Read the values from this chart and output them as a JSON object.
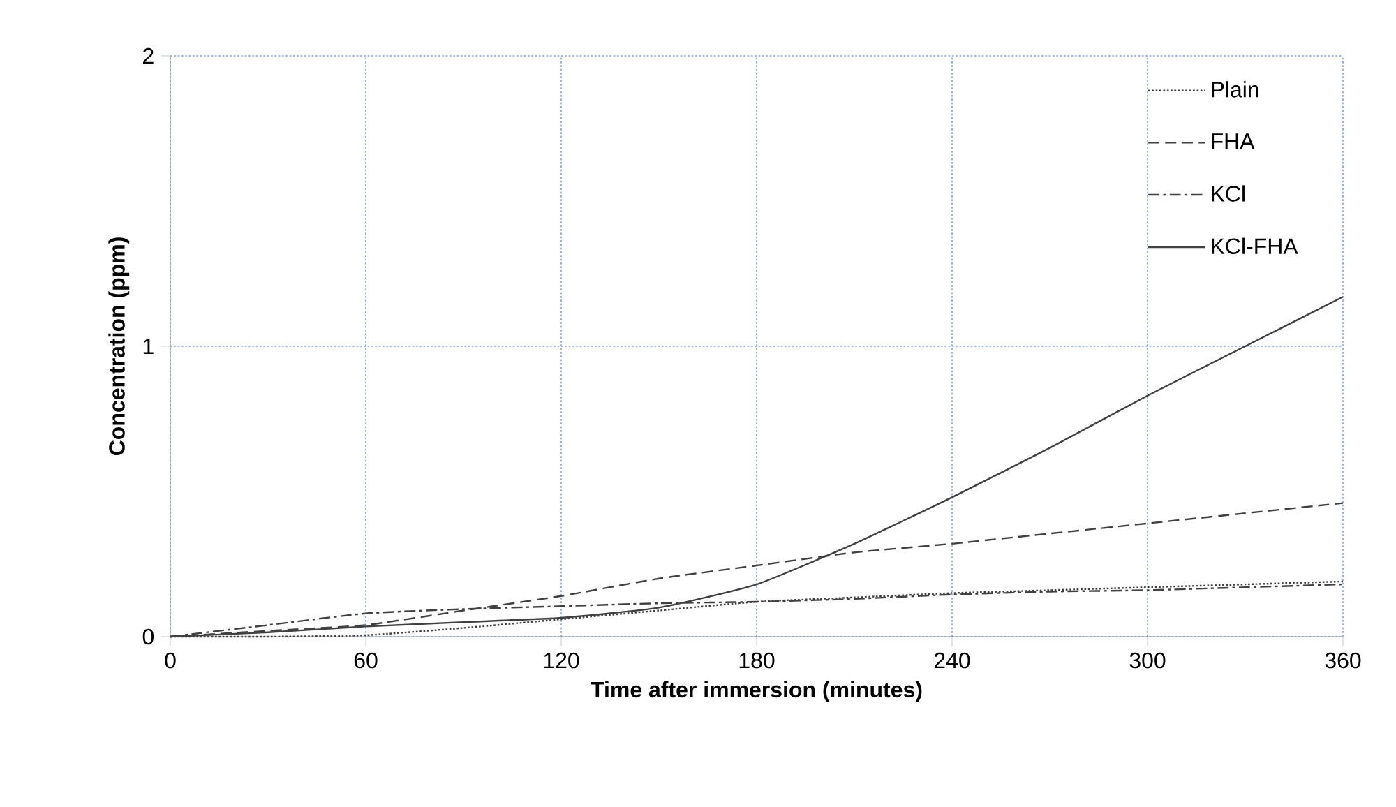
{
  "chart_data": {
    "type": "line",
    "xlabel": "Time after immersion (minutes)",
    "ylabel": "Concentration (ppm)",
    "x": [
      0,
      30,
      60,
      90,
      120,
      150,
      180,
      210,
      240,
      270,
      300,
      330,
      360
    ],
    "series": [
      {
        "name": "Plain",
        "color": "#404040",
        "line_style": "dotted",
        "values": [
          0,
          0,
          0.005,
          0.03,
          0.06,
          0.09,
          0.12,
          0.135,
          0.15,
          0.16,
          0.17,
          0.18,
          0.19
        ]
      },
      {
        "name": "FHA",
        "color": "#404040",
        "line_style": "dashed",
        "values": [
          0,
          0.02,
          0.04,
          0.09,
          0.14,
          0.2,
          0.245,
          0.29,
          0.32,
          0.355,
          0.39,
          0.425,
          0.46
        ]
      },
      {
        "name": "KCl",
        "color": "#404040",
        "line_style": "dashdot",
        "values": [
          0,
          0.04,
          0.08,
          0.095,
          0.105,
          0.115,
          0.12,
          0.13,
          0.145,
          0.155,
          0.16,
          0.17,
          0.18
        ]
      },
      {
        "name": "KCl-FHA",
        "color": "#404040",
        "line_style": "solid",
        "values": [
          0,
          0.015,
          0.035,
          0.05,
          0.065,
          0.1,
          0.18,
          0.32,
          0.48,
          0.65,
          0.83,
          1.0,
          1.17
        ]
      }
    ],
    "xlim": [
      0,
      360
    ],
    "xticks": [
      0,
      60,
      120,
      180,
      240,
      300,
      360
    ],
    "ylim": [
      0,
      2
    ],
    "yticks": [
      0,
      1,
      2
    ],
    "grid": true,
    "legend": "top right"
  }
}
